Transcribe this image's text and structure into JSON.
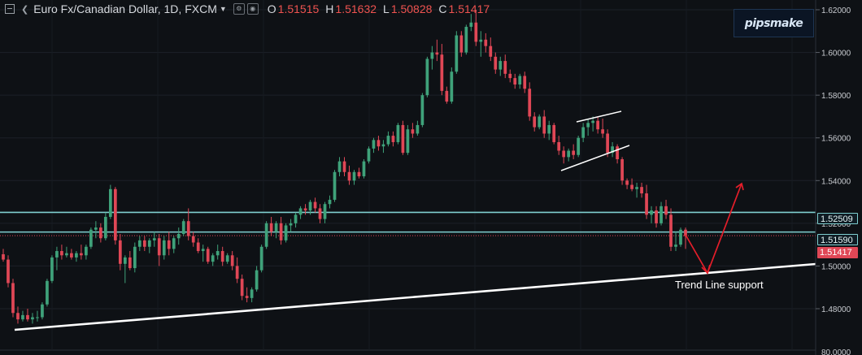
{
  "header": {
    "symbol_title": "Euro Fx/Canadian Dollar, 1D, FXCM",
    "open_label": "O",
    "open_value": "1.51515",
    "high_label": "H",
    "high_value": "1.51632",
    "low_label": "L",
    "low_value": "1.50828",
    "close_label": "C",
    "close_value": "1.51417"
  },
  "watermark": {
    "text": "pipsmake"
  },
  "price_axis": {
    "ticks": [
      "1.62000",
      "1.60000",
      "1.58000",
      "1.56000",
      "1.54000",
      "1.52000",
      "1.50000",
      "1.48000"
    ],
    "bottom_label": "80.0000"
  },
  "tags": {
    "upper_level": "1.52509",
    "lower_level": "1.51590",
    "last_price": "1.51417"
  },
  "annotation": {
    "text": "Trend Line support"
  },
  "colors": {
    "background": "#0e1115",
    "bull": "#3fa27a",
    "bear": "#e04756",
    "level_line": "#7fcfd0",
    "trend_line": "#ffffff",
    "projection_arrow": "#e51e2a"
  },
  "chart_data": {
    "type": "candlestick",
    "timeframe": "1D",
    "ylim": [
      1.47,
      1.625
    ],
    "horizontal_levels": [
      1.52509,
      1.5159
    ],
    "last_price": 1.51417,
    "candles": [
      [
        1.5055,
        1.508,
        1.502,
        1.503
      ],
      [
        1.503,
        1.505,
        1.49,
        1.492
      ],
      [
        1.492,
        1.494,
        1.476,
        1.478
      ],
      [
        1.478,
        1.481,
        1.473,
        1.475
      ],
      [
        1.475,
        1.479,
        1.474,
        1.477
      ],
      [
        1.477,
        1.48,
        1.474,
        1.475
      ],
      [
        1.475,
        1.478,
        1.473,
        1.476
      ],
      [
        1.476,
        1.479,
        1.474,
        1.476
      ],
      [
        1.476,
        1.483,
        1.475,
        1.482
      ],
      [
        1.482,
        1.494,
        1.481,
        1.493
      ],
      [
        1.493,
        1.505,
        1.492,
        1.504
      ],
      [
        1.504,
        1.509,
        1.498,
        1.507
      ],
      [
        1.507,
        1.51,
        1.503,
        1.505
      ],
      [
        1.505,
        1.509,
        1.504,
        1.506
      ],
      [
        1.506,
        1.508,
        1.503,
        1.504
      ],
      [
        1.504,
        1.507,
        1.502,
        1.506
      ],
      [
        1.506,
        1.51,
        1.503,
        1.505
      ],
      [
        1.505,
        1.51,
        1.503,
        1.509
      ],
      [
        1.509,
        1.518,
        1.508,
        1.517
      ],
      [
        1.517,
        1.521,
        1.513,
        1.518
      ],
      [
        1.518,
        1.52,
        1.511,
        1.513
      ],
      [
        1.513,
        1.525,
        1.512,
        1.523
      ],
      [
        1.523,
        1.538,
        1.522,
        1.536
      ],
      [
        1.536,
        1.537,
        1.51,
        1.512
      ],
      [
        1.512,
        1.515,
        1.498,
        1.501
      ],
      [
        1.501,
        1.505,
        1.492,
        1.504
      ],
      [
        1.504,
        1.507,
        1.498,
        1.499
      ],
      [
        1.499,
        1.511,
        1.497,
        1.509
      ],
      [
        1.509,
        1.514,
        1.507,
        1.512
      ],
      [
        1.512,
        1.514,
        1.507,
        1.509
      ],
      [
        1.509,
        1.513,
        1.506,
        1.512
      ],
      [
        1.512,
        1.516,
        1.509,
        1.513
      ],
      [
        1.513,
        1.515,
        1.5,
        1.505
      ],
      [
        1.505,
        1.514,
        1.503,
        1.512
      ],
      [
        1.512,
        1.516,
        1.505,
        1.508
      ],
      [
        1.508,
        1.514,
        1.506,
        1.513
      ],
      [
        1.513,
        1.518,
        1.51,
        1.515
      ],
      [
        1.515,
        1.522,
        1.514,
        1.521
      ],
      [
        1.521,
        1.527,
        1.512,
        1.514
      ],
      [
        1.514,
        1.516,
        1.509,
        1.511
      ],
      [
        1.511,
        1.513,
        1.506,
        1.507
      ],
      [
        1.507,
        1.51,
        1.502,
        1.508
      ],
      [
        1.508,
        1.509,
        1.501,
        1.502
      ],
      [
        1.502,
        1.506,
        1.5,
        1.505
      ],
      [
        1.505,
        1.51,
        1.503,
        1.507
      ],
      [
        1.507,
        1.509,
        1.5,
        1.502
      ],
      [
        1.502,
        1.506,
        1.501,
        1.505
      ],
      [
        1.505,
        1.507,
        1.498,
        1.5
      ],
      [
        1.5,
        1.504,
        1.492,
        1.494
      ],
      [
        1.494,
        1.496,
        1.484,
        1.486
      ],
      [
        1.486,
        1.49,
        1.483,
        1.485
      ],
      [
        1.485,
        1.49,
        1.483,
        1.489
      ],
      [
        1.489,
        1.5,
        1.488,
        1.498
      ],
      [
        1.498,
        1.51,
        1.497,
        1.509
      ],
      [
        1.509,
        1.521,
        1.508,
        1.52
      ],
      [
        1.52,
        1.523,
        1.514,
        1.516
      ],
      [
        1.516,
        1.521,
        1.513,
        1.52
      ],
      [
        1.52,
        1.523,
        1.51,
        1.512
      ],
      [
        1.512,
        1.52,
        1.511,
        1.519
      ],
      [
        1.519,
        1.522,
        1.516,
        1.52
      ],
      [
        1.52,
        1.525,
        1.518,
        1.524
      ],
      [
        1.524,
        1.528,
        1.522,
        1.527
      ],
      [
        1.527,
        1.529,
        1.524,
        1.526
      ],
      [
        1.526,
        1.531,
        1.524,
        1.53
      ],
      [
        1.53,
        1.532,
        1.525,
        1.527
      ],
      [
        1.527,
        1.529,
        1.52,
        1.522
      ],
      [
        1.522,
        1.53,
        1.52,
        1.529
      ],
      [
        1.529,
        1.533,
        1.527,
        1.531
      ],
      [
        1.531,
        1.545,
        1.53,
        1.544
      ],
      [
        1.544,
        1.551,
        1.542,
        1.549
      ],
      [
        1.549,
        1.551,
        1.542,
        1.544
      ],
      [
        1.544,
        1.547,
        1.538,
        1.54
      ],
      [
        1.54,
        1.545,
        1.538,
        1.544
      ],
      [
        1.544,
        1.546,
        1.541,
        1.542
      ],
      [
        1.542,
        1.55,
        1.541,
        1.549
      ],
      [
        1.549,
        1.556,
        1.548,
        1.555
      ],
      [
        1.555,
        1.56,
        1.553,
        1.559
      ],
      [
        1.559,
        1.561,
        1.554,
        1.556
      ],
      [
        1.556,
        1.559,
        1.553,
        1.557
      ],
      [
        1.557,
        1.563,
        1.556,
        1.561
      ],
      [
        1.561,
        1.563,
        1.556,
        1.558
      ],
      [
        1.558,
        1.567,
        1.557,
        1.566
      ],
      [
        1.566,
        1.568,
        1.552,
        1.553
      ],
      [
        1.553,
        1.566,
        1.552,
        1.564
      ],
      [
        1.564,
        1.567,
        1.56,
        1.562
      ],
      [
        1.562,
        1.568,
        1.561,
        1.566
      ],
      [
        1.566,
        1.581,
        1.565,
        1.58
      ],
      [
        1.58,
        1.598,
        1.579,
        1.597
      ],
      [
        1.597,
        1.603,
        1.592,
        1.6
      ],
      [
        1.6,
        1.606,
        1.596,
        1.599
      ],
      [
        1.599,
        1.604,
        1.58,
        1.582
      ],
      [
        1.582,
        1.584,
        1.576,
        1.577
      ],
      [
        1.577,
        1.593,
        1.576,
        1.591
      ],
      [
        1.591,
        1.61,
        1.59,
        1.608
      ],
      [
        1.608,
        1.61,
        1.598,
        1.6
      ],
      [
        1.6,
        1.613,
        1.599,
        1.612
      ],
      [
        1.612,
        1.618,
        1.61,
        1.614
      ],
      [
        1.614,
        1.62,
        1.603,
        1.605
      ],
      [
        1.605,
        1.61,
        1.598,
        1.606
      ],
      [
        1.606,
        1.609,
        1.6,
        1.603
      ],
      [
        1.603,
        1.607,
        1.596,
        1.598
      ],
      [
        1.598,
        1.6,
        1.59,
        1.592
      ],
      [
        1.592,
        1.598,
        1.589,
        1.596
      ],
      [
        1.596,
        1.599,
        1.588,
        1.59
      ],
      [
        1.59,
        1.592,
        1.586,
        1.588
      ],
      [
        1.588,
        1.59,
        1.583,
        1.585
      ],
      [
        1.585,
        1.59,
        1.583,
        1.589
      ],
      [
        1.589,
        1.591,
        1.581,
        1.583
      ],
      [
        1.583,
        1.586,
        1.568,
        1.57
      ],
      [
        1.57,
        1.572,
        1.563,
        1.565
      ],
      [
        1.565,
        1.571,
        1.564,
        1.57
      ],
      [
        1.57,
        1.573,
        1.56,
        1.562
      ],
      [
        1.562,
        1.568,
        1.559,
        1.566
      ],
      [
        1.566,
        1.567,
        1.557,
        1.558
      ],
      [
        1.558,
        1.561,
        1.552,
        1.554
      ],
      [
        1.554,
        1.556,
        1.548,
        1.551
      ],
      [
        1.551,
        1.555,
        1.549,
        1.554
      ],
      [
        1.554,
        1.557,
        1.55,
        1.552
      ],
      [
        1.552,
        1.561,
        1.551,
        1.56
      ],
      [
        1.56,
        1.567,
        1.558,
        1.565
      ],
      [
        1.565,
        1.569,
        1.561,
        1.567
      ],
      [
        1.567,
        1.57,
        1.563,
        1.568
      ],
      [
        1.568,
        1.57,
        1.562,
        1.564
      ],
      [
        1.564,
        1.569,
        1.56,
        1.562
      ],
      [
        1.562,
        1.564,
        1.551,
        1.553
      ],
      [
        1.553,
        1.558,
        1.551,
        1.556
      ],
      [
        1.556,
        1.557,
        1.548,
        1.55
      ],
      [
        1.55,
        1.551,
        1.538,
        1.54
      ],
      [
        1.54,
        1.541,
        1.536,
        1.538
      ],
      [
        1.538,
        1.541,
        1.535,
        1.536
      ],
      [
        1.536,
        1.539,
        1.532,
        1.537
      ],
      [
        1.537,
        1.539,
        1.532,
        1.534
      ],
      [
        1.534,
        1.538,
        1.522,
        1.524
      ],
      [
        1.524,
        1.528,
        1.52,
        1.526
      ],
      [
        1.526,
        1.528,
        1.518,
        1.52
      ],
      [
        1.52,
        1.53,
        1.519,
        1.528
      ],
      [
        1.528,
        1.531,
        1.522,
        1.524
      ],
      [
        1.524,
        1.527,
        1.507,
        1.509
      ],
      [
        1.509,
        1.516,
        1.507,
        1.51
      ],
      [
        1.51,
        1.518,
        1.509,
        1.517
      ],
      [
        1.517,
        1.518,
        1.508,
        1.514
      ]
    ]
  }
}
